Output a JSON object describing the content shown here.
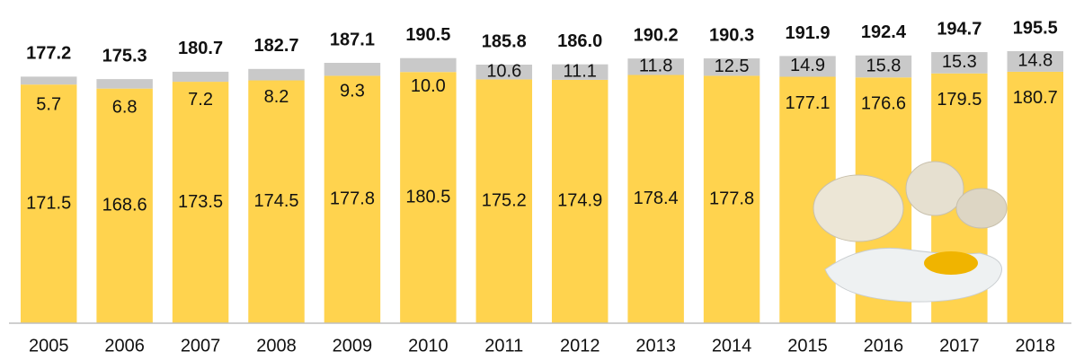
{
  "chart_data": {
    "type": "stacked-bar",
    "categories": [
      "2005",
      "2006",
      "2007",
      "2008",
      "2009",
      "2010",
      "2011",
      "2012",
      "2013",
      "2014",
      "2015",
      "2016",
      "2017",
      "2018"
    ],
    "series": [
      {
        "color": "#FFD34E",
        "values": [
          171.5,
          168.6,
          173.5,
          174.5,
          177.8,
          180.5,
          175.2,
          174.9,
          178.4,
          177.8,
          177.1,
          176.6,
          179.5,
          180.7
        ]
      },
      {
        "color": "#C9C9C9",
        "values": [
          5.7,
          6.8,
          7.2,
          8.2,
          9.3,
          10,
          10.6,
          11.1,
          11.8,
          12.5,
          14.9,
          15.8,
          15.3,
          14.8
        ],
        "value_labels": [
          "5.7",
          "6.8",
          "7.2",
          "8.2",
          "9.3",
          "10.0",
          "10.6",
          "11.1",
          "11.8",
          "12.5",
          "14.9",
          "15.8",
          "15.3",
          "14.8"
        ]
      }
    ],
    "totals": {
      "values": [
        177.2,
        175.3,
        180.7,
        182.7,
        187.1,
        190.5,
        185.8,
        186,
        190.2,
        190.3,
        191.9,
        192.4,
        194.7,
        195.5
      ],
      "value_labels": [
        "177.2",
        "175.3",
        "180.7",
        "182.7",
        "187.1",
        "190.5",
        "185.8",
        "186.0",
        "190.2",
        "190.3",
        "191.9",
        "192.4",
        "194.7",
        "195.5"
      ]
    },
    "ylim": [
      0,
      200
    ]
  }
}
